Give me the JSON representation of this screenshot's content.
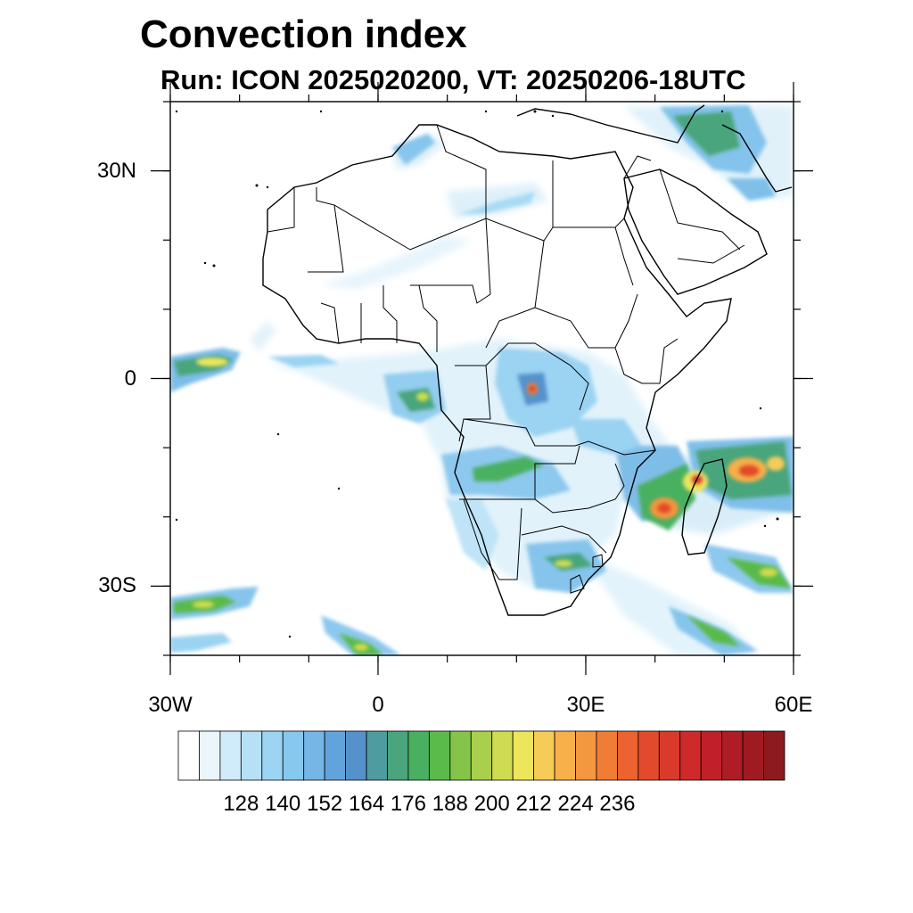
{
  "title": "Convection index",
  "subtitle": "Run: ICON 2025020200,  VT: 20250206-18UTC",
  "map": {
    "lon_range": [
      -30,
      60
    ],
    "lat_range": [
      -40,
      40
    ],
    "lon_ticks": [
      {
        "value": -30,
        "label": "30W"
      },
      {
        "value": 0,
        "label": "0"
      },
      {
        "value": 30,
        "label": "30E"
      },
      {
        "value": 60,
        "label": "60E"
      }
    ],
    "lat_ticks": [
      {
        "value": 30,
        "label": "30N"
      },
      {
        "value": 0,
        "label": "0"
      },
      {
        "value": -30,
        "label": "30S"
      }
    ]
  },
  "colorbar": {
    "labels": [
      "128",
      "140",
      "152",
      "164",
      "176",
      "188",
      "200",
      "212",
      "224",
      "236"
    ],
    "colors": [
      "#ffffff",
      "#eaf5fc",
      "#d0ebf9",
      "#b5e0f6",
      "#9bd5f3",
      "#86c8ee",
      "#75b6e6",
      "#62a3dc",
      "#5592cc",
      "#4e9ca0",
      "#4aa57c",
      "#48b060",
      "#5aba4a",
      "#84c44a",
      "#aacf4c",
      "#cfdc50",
      "#ede65c",
      "#f7cb58",
      "#f7b04a",
      "#f59640",
      "#f17c36",
      "#ec6230",
      "#e34a2c",
      "#da3a2c",
      "#ce2a2c",
      "#c02028",
      "#b01c26",
      "#a01a22",
      "#8c1a1e"
    ]
  },
  "regions": [
    {
      "name": "Atlantic equatorial band",
      "lon": -25,
      "lat": 1,
      "intensity": "medium-high"
    },
    {
      "name": "Congo basin",
      "lon": 22,
      "lat": 0,
      "intensity": "high"
    },
    {
      "name": "Mozambique Channel",
      "lon": 42,
      "lat": -18,
      "intensity": "high"
    },
    {
      "name": "North of Madagascar",
      "lon": 52,
      "lat": -13,
      "intensity": "high"
    },
    {
      "name": "South Africa east",
      "lon": 28,
      "lat": -28,
      "intensity": "medium"
    },
    {
      "name": "South Atlantic band",
      "lon": -22,
      "lat": -33,
      "intensity": "medium"
    },
    {
      "name": "Southern Ocean band",
      "lon": 44,
      "lat": -36,
      "intensity": "medium"
    },
    {
      "name": "Mediterranean east",
      "lon": 52,
      "lat": 37,
      "intensity": "medium"
    },
    {
      "name": "Sahara streak",
      "lon": 10,
      "lat": 19,
      "intensity": "low"
    }
  ]
}
